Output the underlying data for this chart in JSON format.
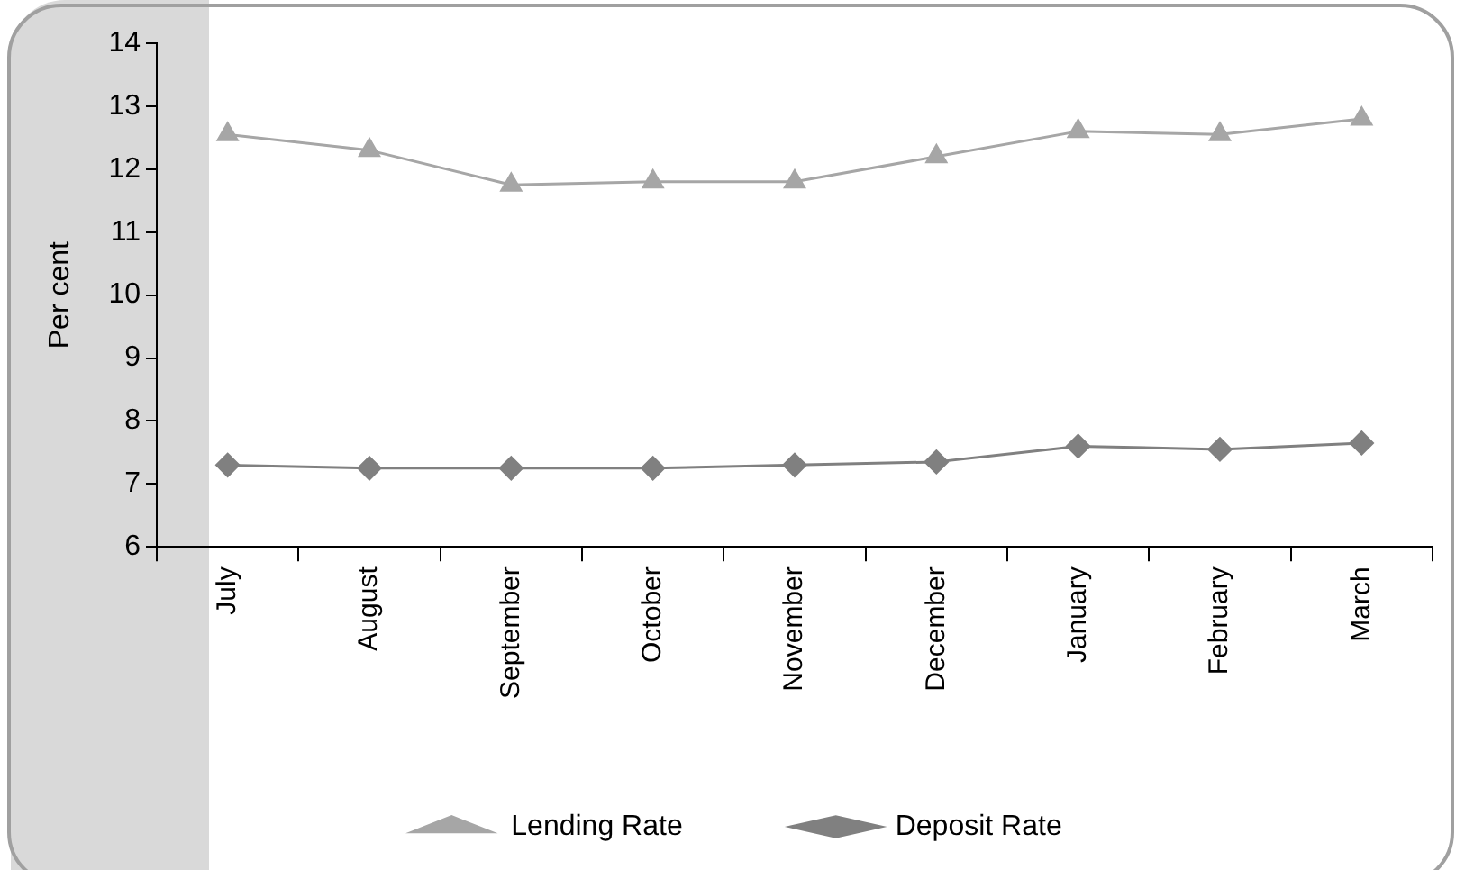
{
  "chart_data": {
    "type": "line",
    "ylabel": "Per cent",
    "categories": [
      "July",
      "August",
      "September",
      "October",
      "November",
      "December",
      "January",
      "February",
      "March"
    ],
    "series": [
      {
        "name": "Lending Rate",
        "color": "#a6a6a6",
        "marker": "triangle",
        "values": [
          12.55,
          12.3,
          11.75,
          11.8,
          11.8,
          12.2,
          12.6,
          12.55,
          12.8
        ]
      },
      {
        "name": "Deposit Rate",
        "color": "#808080",
        "marker": "diamond",
        "values": [
          7.3,
          7.25,
          7.25,
          7.25,
          7.3,
          7.35,
          7.6,
          7.55,
          7.65
        ]
      }
    ],
    "ylim": [
      6,
      14
    ],
    "yticks": [
      6,
      7,
      8,
      9,
      10,
      11,
      12,
      13,
      14
    ],
    "grid": false,
    "legend": "bottom",
    "line_style": "solid"
  }
}
